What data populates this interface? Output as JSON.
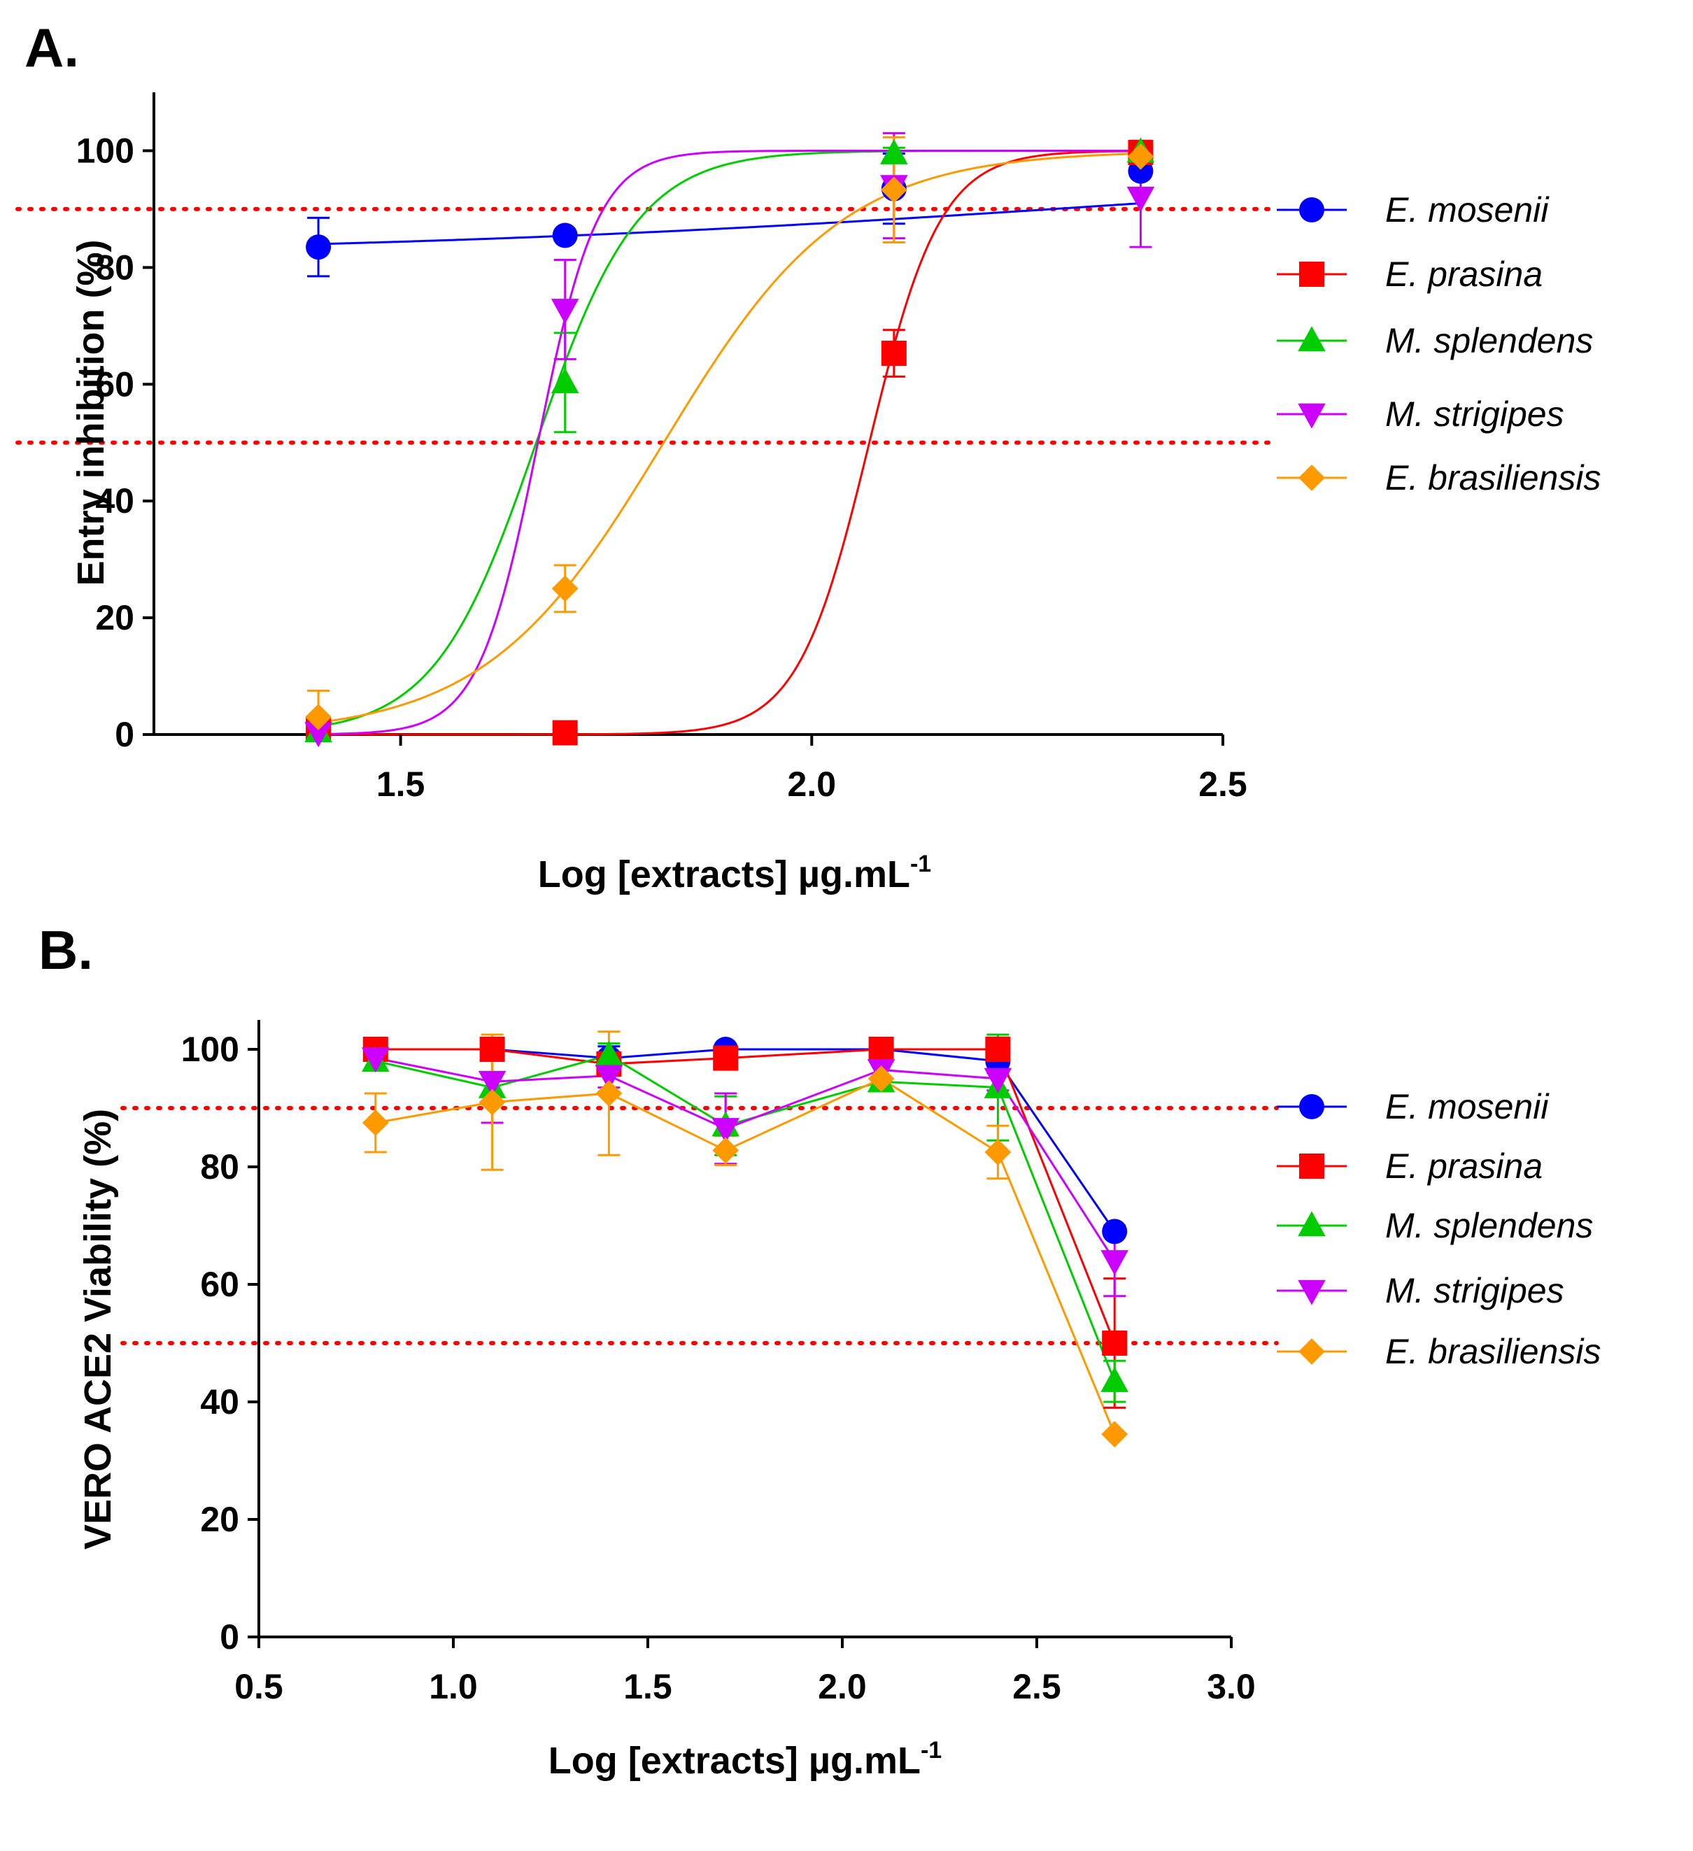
{
  "colors": {
    "E. mosenii": "#0000ff",
    "E. prasina": "#ff0000",
    "M. splendens": "#00cc00",
    "M. strigipes": "#cc00ff",
    "E. brasiliensis": "#ff9900",
    "threshold": "#ff0000"
  },
  "chart_data": [
    {
      "panel": "A.",
      "type": "scatter",
      "title": "",
      "xlabel": "Log [extracts] µg.mL",
      "xlabel_sup": "-1",
      "ylabel": "Entry inhibition (%)",
      "xlim": [
        1.2,
        2.5
      ],
      "ylim": [
        0,
        110
      ],
      "xticks": [
        1.5,
        2.0,
        2.5
      ],
      "xtick_labels": [
        "1.5",
        "2.0",
        "2.5"
      ],
      "yticks": [
        0,
        20,
        40,
        60,
        80,
        100
      ],
      "ytick_labels": [
        "0",
        "20",
        "40",
        "60",
        "80",
        "100"
      ],
      "threshold_lines": [
        50,
        90
      ],
      "legend_position": "right",
      "series": [
        {
          "name": "E. mosenii",
          "marker": "circle",
          "x": [
            1.4,
            1.7,
            2.1,
            2.4
          ],
          "y": [
            83.5,
            85.5,
            93.5,
            96.5
          ],
          "err": [
            5,
            0,
            6,
            3
          ],
          "fit": {
            "bottom": 82,
            "top": 100,
            "logec50": 2.4,
            "hill": 0.9
          }
        },
        {
          "name": "E. prasina",
          "marker": "square",
          "x": [
            1.4,
            1.7,
            2.1,
            2.4
          ],
          "y": [
            1,
            0.3,
            65.3,
            99.7
          ],
          "err": [
            0,
            0,
            4,
            2
          ],
          "fit": {
            "bottom": 0,
            "top": 100,
            "logec50": 2.07,
            "hill": 10
          }
        },
        {
          "name": "M. splendens",
          "marker": "triangle-up",
          "x": [
            1.4,
            1.7,
            2.1,
            2.4
          ],
          "y": [
            0.5,
            60.3,
            99.5,
            99.8
          ],
          "err": [
            0,
            8.5,
            1,
            0
          ],
          "fit": {
            "bottom": 0,
            "top": 100,
            "logec50": 1.665,
            "hill": 7
          }
        },
        {
          "name": "M. strigipes",
          "marker": "triangle-down",
          "x": [
            1.4,
            1.7,
            2.1,
            2.4
          ],
          "y": [
            0.3,
            72.8,
            94,
            92
          ],
          "err": [
            0,
            8.5,
            9,
            8.5
          ],
          "fit": {
            "bottom": 0,
            "top": 100,
            "logec50": 1.667,
            "hill": 12
          }
        },
        {
          "name": "E. brasiliensis",
          "marker": "diamond",
          "x": [
            1.4,
            1.7,
            2.1,
            2.4
          ],
          "y": [
            3,
            25,
            93.3,
            99
          ],
          "err": [
            4.5,
            4,
            9,
            2
          ],
          "fit": {
            "bottom": 0,
            "top": 100,
            "logec50": 1.82,
            "hill": 4
          }
        }
      ]
    },
    {
      "panel": "B.",
      "type": "line",
      "title": "",
      "xlabel": "Log [extracts] µg.mL",
      "xlabel_sup": "-1",
      "ylabel": "VERO ACE2 Viability (%)",
      "xlim": [
        0.5,
        3.0
      ],
      "ylim": [
        0,
        105
      ],
      "xticks": [
        0.5,
        1.0,
        1.5,
        2.0,
        2.5,
        3.0
      ],
      "xtick_labels": [
        "0.5",
        "1.0",
        "1.5",
        "2.0",
        "2.5",
        "3.0"
      ],
      "yticks": [
        0,
        20,
        40,
        60,
        80,
        100
      ],
      "ytick_labels": [
        "0",
        "20",
        "40",
        "60",
        "80",
        "100"
      ],
      "threshold_lines": [
        50,
        90
      ],
      "legend_position": "right",
      "series": [
        {
          "name": "E. mosenii",
          "marker": "circle",
          "x": [
            0.8,
            1.1,
            1.4,
            1.7,
            2.1,
            2.4,
            2.7
          ],
          "y": [
            100,
            100,
            98.5,
            100,
            100,
            98,
            69
          ],
          "err": [
            0,
            0,
            2,
            0,
            0,
            2,
            0
          ]
        },
        {
          "name": "E. prasina",
          "marker": "square",
          "x": [
            0.8,
            1.1,
            1.4,
            1.7,
            2.1,
            2.4,
            2.7
          ],
          "y": [
            100,
            100,
            97.5,
            98.5,
            100,
            100,
            50
          ],
          "err": [
            0,
            0,
            2,
            0,
            0,
            2,
            11
          ]
        },
        {
          "name": "M. splendens",
          "marker": "triangle-up",
          "x": [
            0.8,
            1.1,
            1.4,
            1.7,
            2.1,
            2.4,
            2.7
          ],
          "y": [
            98,
            93.5,
            99,
            87,
            94.5,
            93.5,
            43.5
          ],
          "err": [
            0,
            0,
            2,
            5,
            0,
            9,
            3.5
          ]
        },
        {
          "name": "M. strigipes",
          "marker": "triangle-down",
          "x": [
            0.8,
            1.1,
            1.4,
            1.7,
            2.1,
            2.4,
            2.7
          ],
          "y": [
            98.5,
            94.5,
            95.5,
            86.5,
            96.5,
            95,
            64
          ],
          "err": [
            0,
            7,
            2,
            6,
            0,
            2,
            6
          ]
        },
        {
          "name": "E. brasiliensis",
          "marker": "diamond",
          "x": [
            0.8,
            1.1,
            1.4,
            1.7,
            2.1,
            2.4,
            2.7
          ],
          "y": [
            87.5,
            91,
            92.5,
            82.8,
            95,
            82.5,
            34.5
          ],
          "err": [
            5,
            11.5,
            10.5,
            2.5,
            0,
            4.5,
            0
          ]
        }
      ]
    }
  ]
}
